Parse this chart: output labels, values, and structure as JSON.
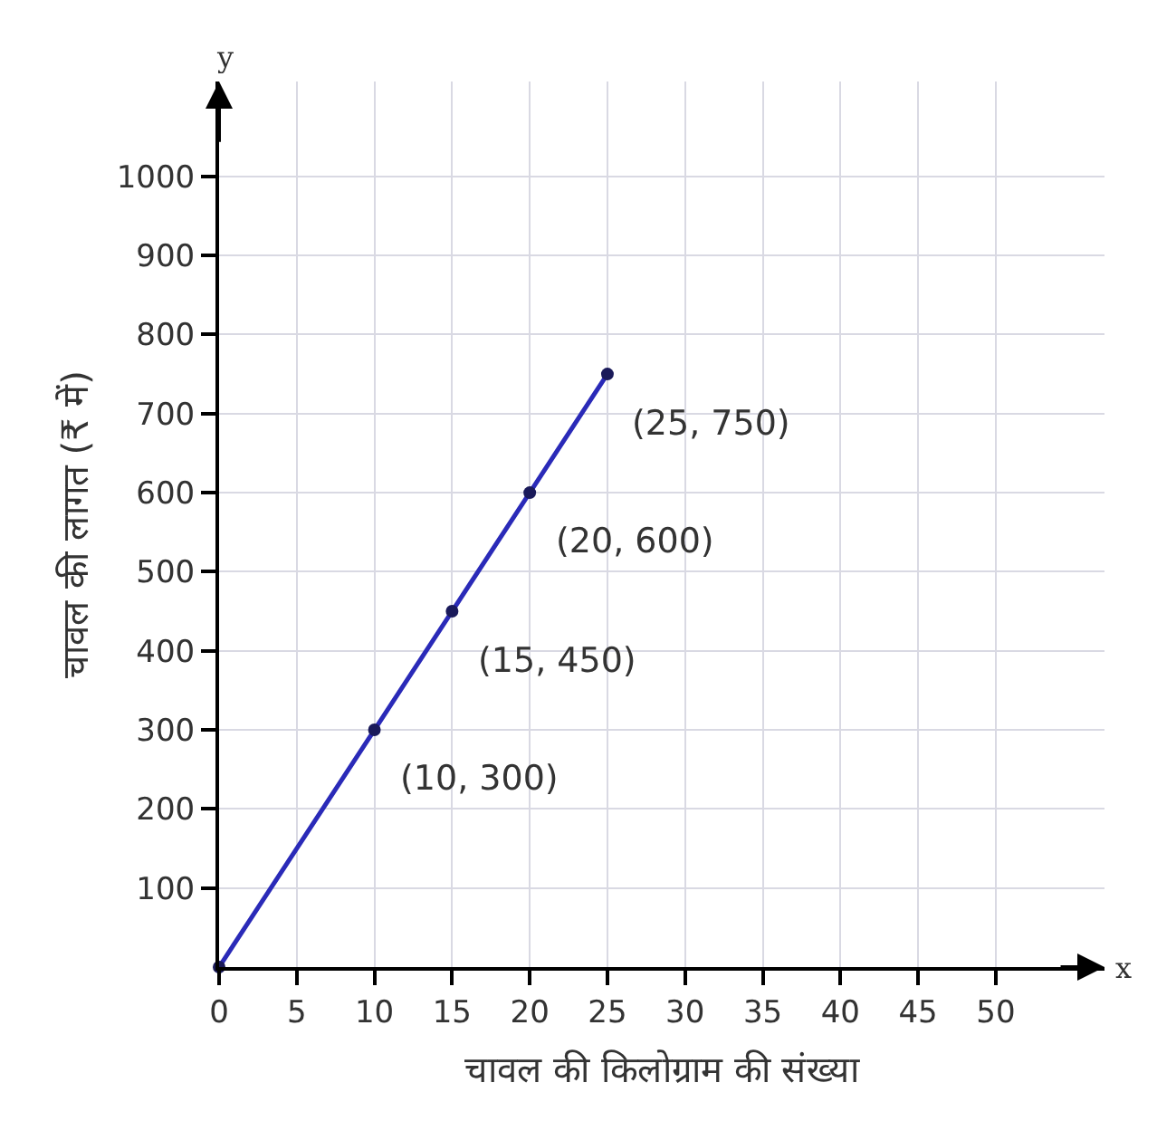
{
  "chart_data": {
    "type": "line",
    "xlabel": "चावल की किलोग्राम की संख्या",
    "ylabel": "चावल की लागत (₹ में)",
    "x": [
      0,
      10,
      15,
      20,
      25
    ],
    "series": [
      {
        "color": "#2a2ab8",
        "values": [
          0,
          300,
          450,
          600,
          750
        ]
      }
    ],
    "annotations": [
      {
        "text": "(10, 300)",
        "x": 10,
        "y": 300
      },
      {
        "text": "(15, 450)",
        "x": 15,
        "y": 450
      },
      {
        "text": "(20, 600)",
        "x": 20,
        "y": 600
      },
      {
        "text": "(25, 750)",
        "x": 25,
        "y": 750
      },
      "y",
      "x"
    ],
    "xlim": [
      0,
      57
    ],
    "ylim": [
      0,
      1120
    ],
    "xticks": [
      0,
      5,
      10,
      15,
      20,
      25,
      30,
      35,
      40,
      45,
      50
    ],
    "yticks": [
      100,
      200,
      300,
      400,
      500,
      600,
      700,
      800,
      900,
      1000
    ],
    "grid": true,
    "marker": "circle",
    "line_style": "solid"
  }
}
